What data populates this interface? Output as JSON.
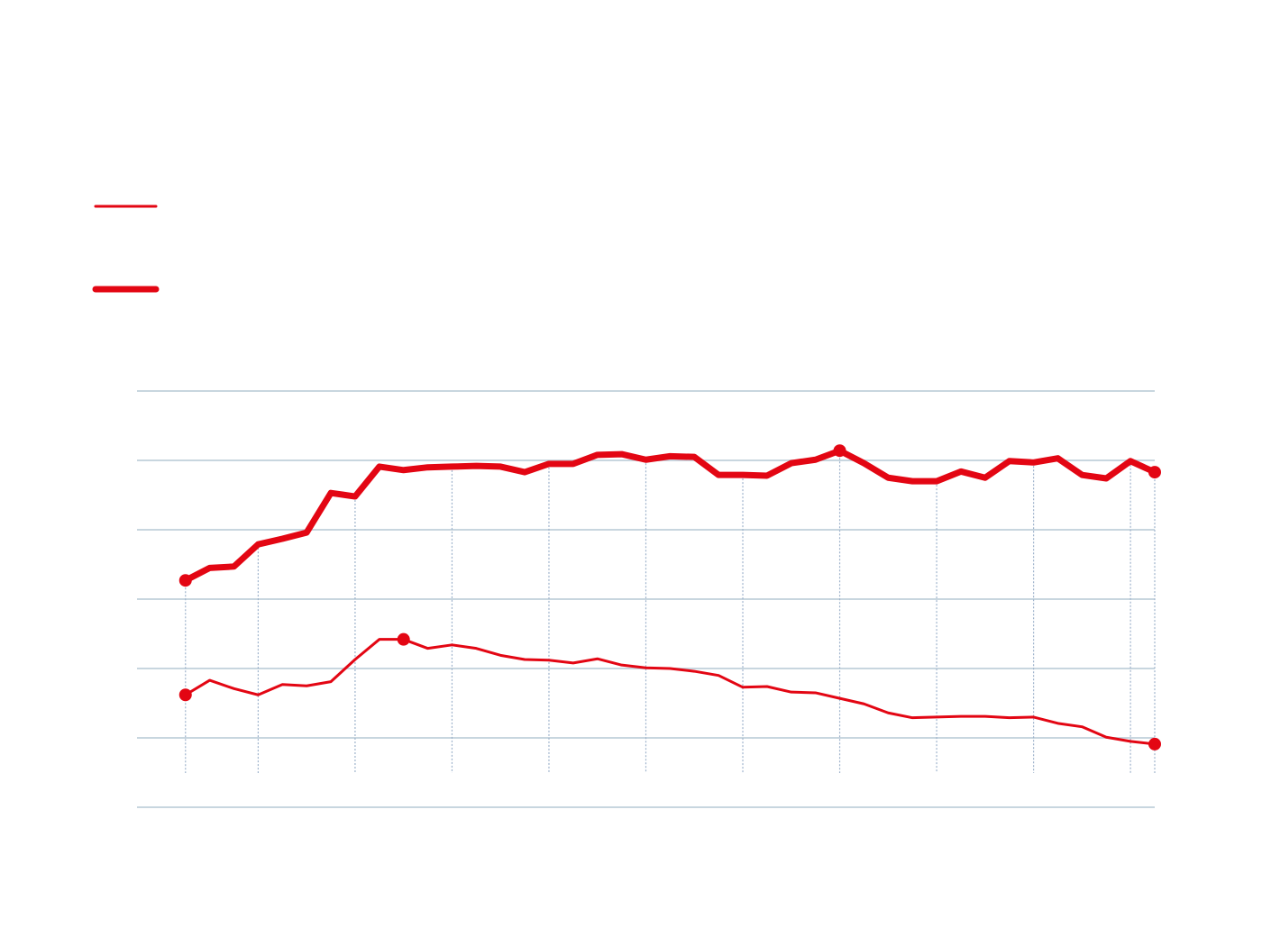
{
  "chart_data": {
    "type": "line",
    "x": [
      0,
      1,
      2,
      3,
      4,
      5,
      6,
      7,
      8,
      9,
      10,
      11,
      12,
      13,
      14,
      15,
      16,
      17,
      18,
      19,
      20,
      21,
      22,
      23,
      24,
      25,
      26,
      27,
      28,
      29,
      30,
      31,
      32,
      33,
      34,
      35,
      36,
      37,
      38,
      39,
      40
    ],
    "series": [
      {
        "color": "#e30613",
        "markers": [
          0,
          9,
          40
        ],
        "values": [
          1.62,
          1.83,
          1.71,
          1.62,
          1.77,
          1.75,
          1.81,
          2.13,
          2.42,
          2.42,
          2.29,
          2.34,
          2.29,
          2.19,
          2.13,
          2.12,
          2.08,
          2.14,
          2.05,
          2.01,
          2.0,
          1.96,
          1.9,
          1.73,
          1.74,
          1.66,
          1.65,
          1.57,
          1.49,
          1.36,
          1.29,
          1.3,
          1.31,
          1.31,
          1.29,
          1.3,
          1.21,
          1.16,
          1.01,
          0.95,
          0.91
        ]
      },
      {
        "color": "#e30613",
        "markers": [
          0,
          27,
          40
        ],
        "values": [
          3.27,
          3.45,
          3.47,
          3.79,
          3.87,
          3.96,
          4.53,
          4.48,
          4.91,
          4.86,
          4.9,
          4.91,
          4.92,
          4.91,
          4.83,
          4.95,
          4.95,
          5.08,
          5.09,
          5.01,
          5.06,
          5.05,
          4.79,
          4.79,
          4.78,
          4.96,
          5.01,
          5.14,
          4.96,
          4.75,
          4.7,
          4.7,
          4.84,
          4.75,
          4.99,
          4.97,
          5.03,
          4.79,
          4.74,
          4.99,
          4.83
        ]
      }
    ],
    "xlim": [
      -2,
      40
    ],
    "xticks": [
      0,
      3,
      7,
      11,
      15,
      19,
      23,
      27,
      31,
      35,
      39,
      40
    ],
    "ylim": [
      0,
      6
    ],
    "yticks": [
      0,
      1,
      2,
      3,
      4,
      5,
      6
    ],
    "grid": true,
    "legend": "top-left"
  }
}
